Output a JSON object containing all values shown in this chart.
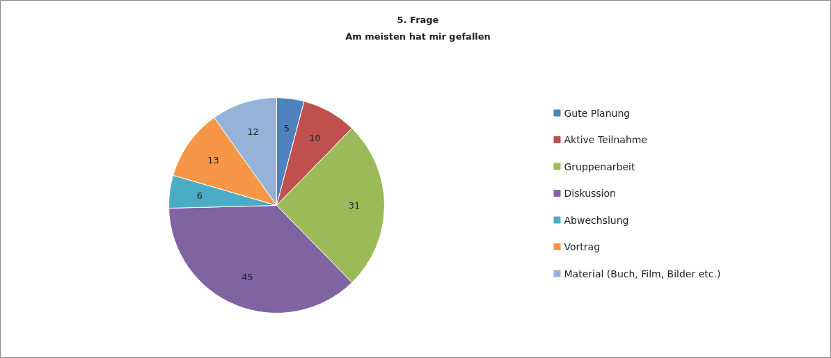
{
  "chart_data": {
    "type": "pie",
    "title": "5. Frage",
    "subtitle": "Am meisten hat mir gefallen",
    "categories": [
      "Gute Planung",
      "Aktive Teilnahme",
      "Gruppenarbeit",
      "Diskussion",
      "Abwechslung",
      "Vortrag",
      "Material (Buch, Film, Bilder etc.)"
    ],
    "values": [
      5,
      10,
      31,
      45,
      6,
      13,
      12
    ],
    "colors": [
      "#4f81bd",
      "#c0504d",
      "#9bbb59",
      "#8064a2",
      "#4bacc6",
      "#f79646",
      "#95b3d7"
    ],
    "data_labels": true,
    "legend": "right"
  }
}
